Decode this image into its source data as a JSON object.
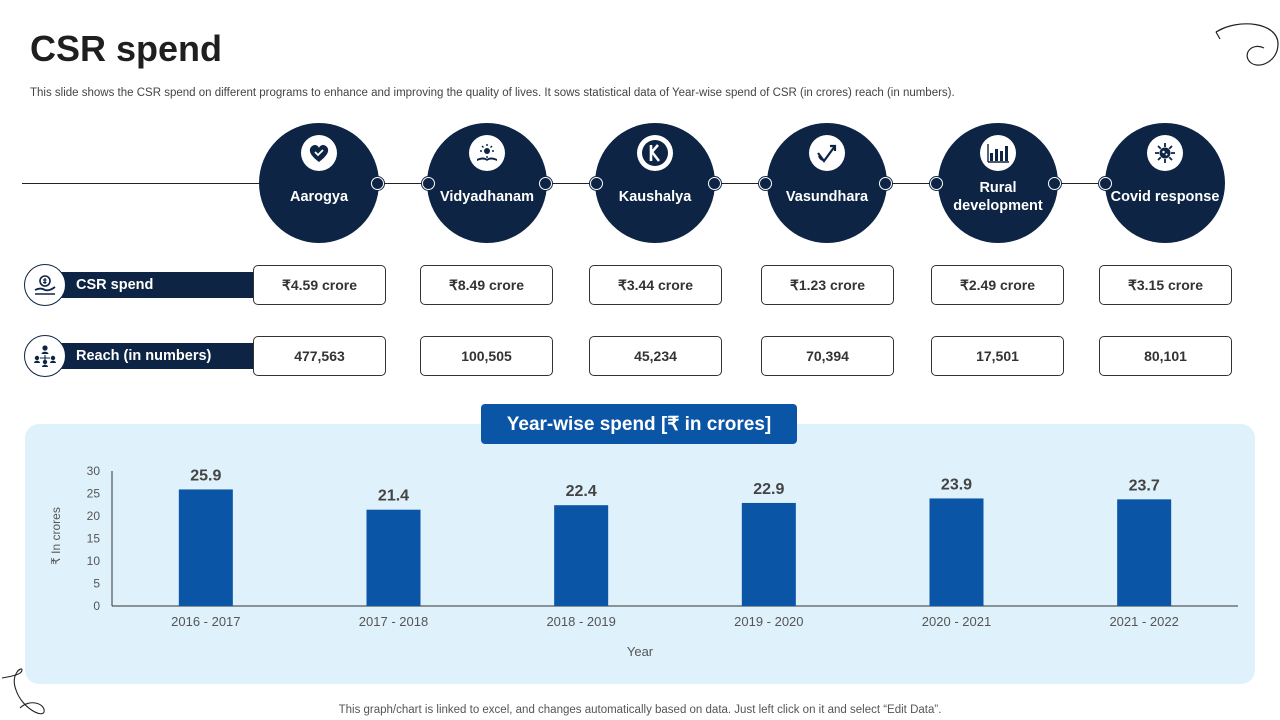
{
  "title": "CSR spend",
  "subtitle": "This slide shows the CSR spend on different programs to enhance and improving the quality of lives. It sows statistical data of Year-wise spend of CSR (in crores) reach (in numbers).",
  "programs": [
    {
      "name": "Aarogya",
      "icon": "heart-icon",
      "spend": "₹4.59 crore",
      "reach": "477,563"
    },
    {
      "name": "Vidyadhanam",
      "icon": "book-icon",
      "spend": "₹8.49 crore",
      "reach": "100,505"
    },
    {
      "name": "Kaushalya",
      "icon": "k-logo-icon",
      "spend": "₹3.44 crore",
      "reach": "45,234"
    },
    {
      "name": "Vasundhara",
      "icon": "growth-arrow-icon",
      "spend": "₹1.23 crore",
      "reach": "70,394"
    },
    {
      "name": "Rural development",
      "icon": "bar-chart-icon",
      "spend": "₹2.49 crore",
      "reach": "17,501"
    },
    {
      "name": "Covid response",
      "icon": "virus-icon",
      "spend": "₹3.15 crore",
      "reach": "80,101"
    }
  ],
  "rows": {
    "spend_label": "CSR spend",
    "reach_label": "Reach (in numbers)"
  },
  "colors": {
    "navy": "#0d2444",
    "bar": "#0a55a6",
    "panel": "#dff1fb"
  },
  "chart_data": {
    "type": "bar",
    "title": "Year-wise spend [₹ in crores]",
    "categories": [
      "2016 - 2017",
      "2017 - 2018",
      "2018 - 2019",
      "2019 - 2020",
      "2020 - 2021",
      "2021 - 2022"
    ],
    "values": [
      25.9,
      21.4,
      22.4,
      22.9,
      23.9,
      23.7
    ],
    "xlabel": "Year",
    "ylabel": "₹ In crores",
    "ylim": [
      0,
      30
    ],
    "yticks": [
      0,
      5,
      10,
      15,
      20,
      25,
      30
    ],
    "grid": false,
    "data_labels": true
  },
  "footer": "This graph/chart is linked to excel, and changes automatically based on data. Just left click on it and select “Edit Data”."
}
